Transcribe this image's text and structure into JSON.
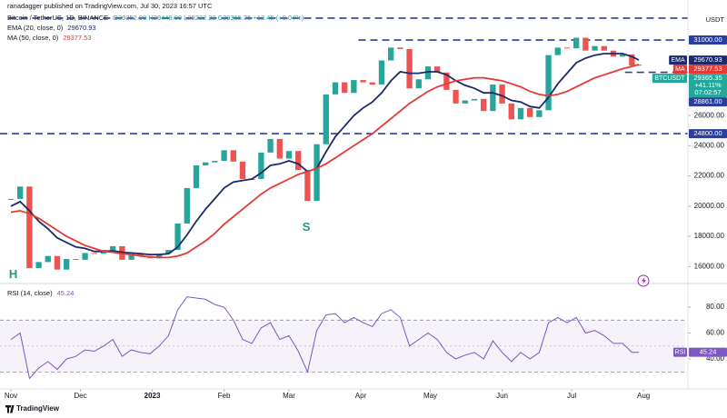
{
  "header": {
    "publisher": "ranadagger published on TradingView.com, Jul 30, 2023 16:57 UTC",
    "symbol": "Bitcoin / TetherUS, 1D, BINANCE",
    "ohlc": "O29352.90 H29449.00 L29232.22 C29365.35 +12.45 (+0.04%)",
    "currency": "USDT",
    "brand": "TradingView"
  },
  "chart_data": [
    {
      "type": "candlestick",
      "tag": "BTCUSDT",
      "x": [
        0,
        4,
        8,
        12,
        16,
        20,
        24,
        28,
        32,
        36,
        40,
        44,
        48,
        52,
        56,
        60,
        64,
        68,
        72,
        76,
        80,
        84,
        88,
        92,
        96,
        100,
        104,
        108,
        112,
        116,
        120,
        124,
        128,
        132,
        136,
        140,
        144,
        148,
        152,
        156,
        160,
        164,
        168,
        172,
        176,
        180,
        184,
        188,
        192,
        196,
        200,
        204,
        208,
        212,
        216,
        220,
        224,
        228,
        232,
        236,
        240,
        244,
        248,
        252,
        256,
        260,
        264,
        268,
        271
      ],
      "values": [
        20480,
        21300,
        15900,
        16300,
        16700,
        15800,
        16500,
        16450,
        16900,
        16850,
        17100,
        17350,
        16450,
        16800,
        16700,
        16550,
        16850,
        17100,
        18850,
        21200,
        22700,
        22900,
        23000,
        23700,
        22950,
        21800,
        21800,
        23550,
        24450,
        23150,
        23650,
        22400,
        20350,
        24100,
        27400,
        28200,
        27500,
        28350,
        28200,
        28050,
        29650,
        30500,
        30400,
        27800,
        28400,
        29250,
        28850,
        27700,
        26800,
        27000,
        27100,
        26300,
        28050,
        26800,
        25750,
        26500,
        25900,
        26350,
        30000,
        30500,
        30450,
        31150,
        30300,
        30600,
        30300,
        29900,
        30050,
        29300,
        29365.35
      ],
      "last_label": "29365.35",
      "change_label": "+41.11%",
      "countdown": "07:02:57",
      "up_color": "#26a69a",
      "down_color": "#ef5350",
      "series": [
        {
          "name": "EMA (20, close, 0)",
          "tag": "EMA",
          "color": "#1b2a6b",
          "last_label": "29670.93",
          "values": [
            20000,
            20300,
            19700,
            19000,
            18500,
            17900,
            17600,
            17300,
            17200,
            17000,
            17000,
            17050,
            16950,
            16900,
            16850,
            16800,
            16800,
            16850,
            17300,
            18100,
            19000,
            19800,
            20500,
            21200,
            21600,
            21700,
            21800,
            22200,
            22700,
            22800,
            23000,
            22800,
            22300,
            22500,
            23600,
            24600,
            25300,
            26000,
            26500,
            26900,
            27500,
            28300,
            28900,
            28800,
            28800,
            28900,
            28900,
            28700,
            28300,
            28000,
            27800,
            27500,
            27500,
            27300,
            27000,
            26900,
            26600,
            26500,
            27200,
            28100,
            28800,
            29500,
            29800,
            30000,
            30100,
            30100,
            30100,
            29900,
            29670.93
          ]
        },
        {
          "name": "MA (50, close, 0)",
          "tag": "MA",
          "color": "#e53935",
          "last_label": "29377.53",
          "values": [
            19600,
            19700,
            19500,
            19200,
            18800,
            18400,
            18000,
            17700,
            17400,
            17200,
            17000,
            16950,
            16850,
            16800,
            16700,
            16650,
            16600,
            16600,
            16700,
            16900,
            17300,
            17700,
            18200,
            18800,
            19300,
            19800,
            20300,
            20800,
            21200,
            21500,
            21800,
            22100,
            22300,
            22500,
            22800,
            23200,
            23600,
            24000,
            24400,
            24800,
            25300,
            25800,
            26300,
            26800,
            27200,
            27600,
            27900,
            28100,
            28300,
            28400,
            28500,
            28500,
            28400,
            28300,
            28100,
            27900,
            27600,
            27400,
            27300,
            27400,
            27600,
            27900,
            28200,
            28500,
            28700,
            28900,
            29100,
            29250,
            29377.53
          ]
        }
      ],
      "levels": [
        {
          "value": 32450,
          "x0": -1
        },
        {
          "value": 31000,
          "x0": 150,
          "label": "31000.00"
        },
        {
          "value": 28861,
          "x0": 265,
          "label": "28861.00"
        },
        {
          "value": 24800,
          "x0": -4.7,
          "label": "24800.00"
        }
      ],
      "level_color": "#2a3f9d",
      "annotations": [
        {
          "text": "H",
          "x": 1,
          "y": 15450
        },
        {
          "text": "S",
          "x": 127.5,
          "y": 18590
        }
      ],
      "xlim": [
        -4.7,
        291
      ],
      "xticks": [
        {
          "value": 0,
          "label": "Nov"
        },
        {
          "value": 30,
          "label": "Dec"
        },
        {
          "value": 61,
          "label": "2023"
        },
        {
          "value": 92,
          "label": "Feb"
        },
        {
          "value": 120,
          "label": "Mar"
        },
        {
          "value": 151,
          "label": "Apr"
        },
        {
          "value": 181,
          "label": "May"
        },
        {
          "value": 212,
          "label": "Jun"
        },
        {
          "value": 242,
          "label": "Jul"
        },
        {
          "value": 273,
          "label": "Aug"
        }
      ],
      "ylim": [
        15300,
        33650
      ],
      "yticks": [
        {
          "value": 16000,
          "label": "16000.00"
        },
        {
          "value": 18000,
          "label": "18000.00"
        },
        {
          "value": 20000,
          "label": "20000.00"
        },
        {
          "value": 22000,
          "label": "22000.00"
        },
        {
          "value": 24000,
          "label": "24000.00"
        },
        {
          "value": 26000,
          "label": "26000.00"
        }
      ]
    },
    {
      "type": "line",
      "title": "RSI (14, close)",
      "color": "#7e57c2",
      "values": [
        55,
        60,
        25,
        33,
        38,
        32,
        40,
        42,
        47,
        46,
        50,
        55,
        42,
        47,
        45,
        44,
        50,
        58,
        78,
        88,
        87,
        86,
        82,
        80,
        70,
        55,
        52,
        64,
        68,
        55,
        58,
        46,
        30,
        62,
        74,
        75,
        68,
        72,
        68,
        65,
        75,
        78,
        72,
        50,
        55,
        60,
        55,
        45,
        40,
        43,
        45,
        40,
        54,
        45,
        38,
        45,
        40,
        45,
        68,
        72,
        68,
        72,
        60,
        62,
        58,
        52,
        52,
        45,
        45.24
      ],
      "last_label": "45.24",
      "bands": [
        30,
        70
      ],
      "mid": 50,
      "ylim": [
        19,
        94
      ],
      "yticks": [
        {
          "value": 80,
          "label": "80.00"
        },
        {
          "value": 60,
          "label": "60.00"
        },
        {
          "value": 40,
          "label": "40.00"
        }
      ]
    }
  ]
}
